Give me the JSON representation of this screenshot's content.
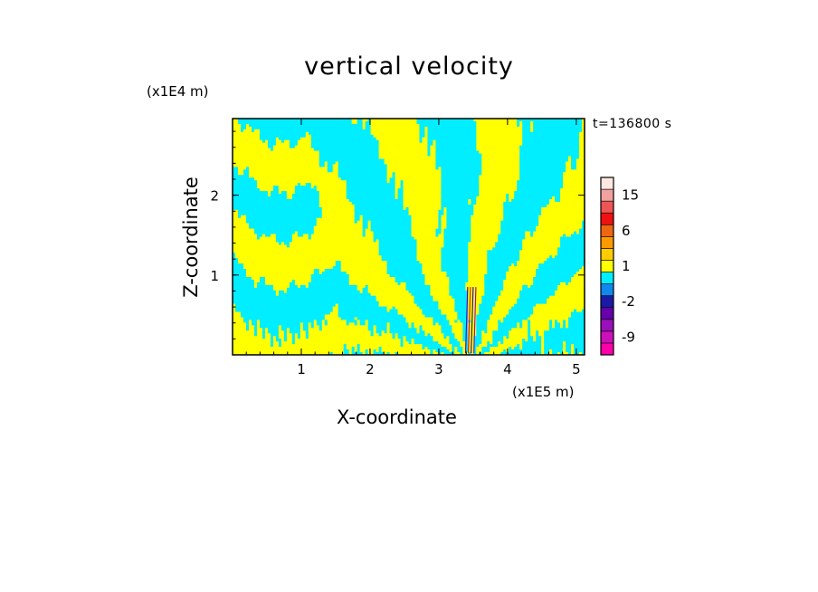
{
  "title": "vertical velocity",
  "time_label": "t=136800 s",
  "colors": {
    "background": "#ffffff",
    "updraft": "#ffff00",
    "downdraft": "#00eeff"
  },
  "chart_data": {
    "type": "heatmap",
    "title": "vertical velocity",
    "xlabel": "X-coordinate",
    "ylabel": "Z-coordinate",
    "x_unit": "(x1E5 m)",
    "y_unit": "(x1E4 m)",
    "x_ticks": [
      "1",
      "2",
      "3",
      "4",
      "5"
    ],
    "y_ticks": [
      "1",
      "2"
    ],
    "xlim": [
      0,
      5.12
    ],
    "ylim": [
      0,
      2.96
    ],
    "annotation": "t=136800 s",
    "field_description": "alternating positive/negative vertical velocity bands fanning out from a source near x=3.45 at the surface",
    "colorbar": {
      "labels": [
        "15",
        "6",
        "1",
        "-2",
        "-9"
      ],
      "bins": [
        {
          "color": "#ff00aa",
          "label": ""
        },
        {
          "color": "#cc11bb",
          "label": "-9"
        },
        {
          "color": "#9911bb",
          "label": ""
        },
        {
          "color": "#6600aa",
          "label": ""
        },
        {
          "color": "#1a1aa6",
          "label": "-2"
        },
        {
          "color": "#1188ee",
          "label": ""
        },
        {
          "color": "#00eeff",
          "label": ""
        },
        {
          "color": "#ffff00",
          "label": "1"
        },
        {
          "color": "#ffcc00",
          "label": ""
        },
        {
          "color": "#ff9900",
          "label": ""
        },
        {
          "color": "#ee6611",
          "label": "6"
        },
        {
          "color": "#ee1111",
          "label": ""
        },
        {
          "color": "#ee5555",
          "label": ""
        },
        {
          "color": "#f2a0a0",
          "label": "15"
        },
        {
          "color": "#ffe8e0",
          "label": ""
        }
      ]
    }
  }
}
